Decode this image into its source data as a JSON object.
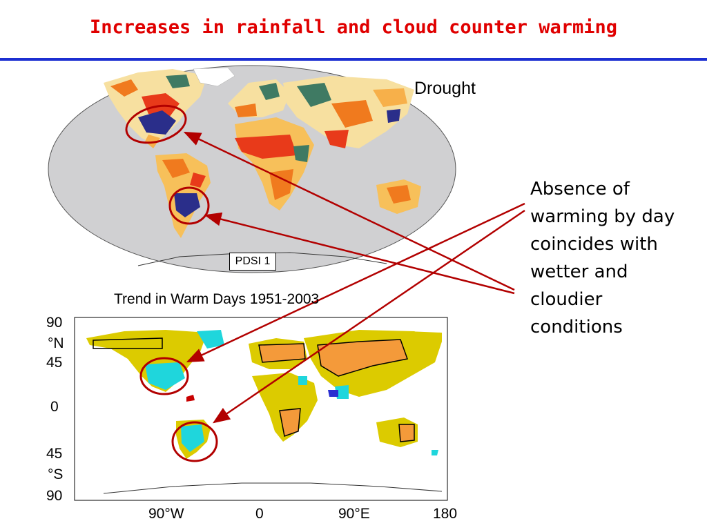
{
  "slide": {
    "title": "Increases in rainfall and cloud counter warming"
  },
  "top_map": {
    "label": "Drought",
    "legend_box": "PDSI 1"
  },
  "bottom_map": {
    "title": "Trend in Warm Days 1951-2003",
    "y_ticks": [
      "90",
      "°N",
      "45",
      "0",
      "45",
      "°S",
      "90"
    ],
    "x_ticks": [
      "90°W",
      "0",
      "90°E",
      "180"
    ]
  },
  "annotation": {
    "lines": [
      "Absence of",
      "warming by day",
      "coincides with",
      "wetter and",
      "cloudier",
      "conditions"
    ]
  },
  "colors": {
    "title": "#e00000",
    "rule": "#1c2fd1",
    "arrow": "#b20000",
    "ocean_top": "#d0d0d2",
    "drought_orange": "#f07a1e",
    "drought_red": "#e83a1a",
    "wet_blue": "#2a2e8a",
    "wet_green": "#3f7a63",
    "warm_yellow": "#dccb00",
    "cool_cyan": "#1fd6dc"
  }
}
